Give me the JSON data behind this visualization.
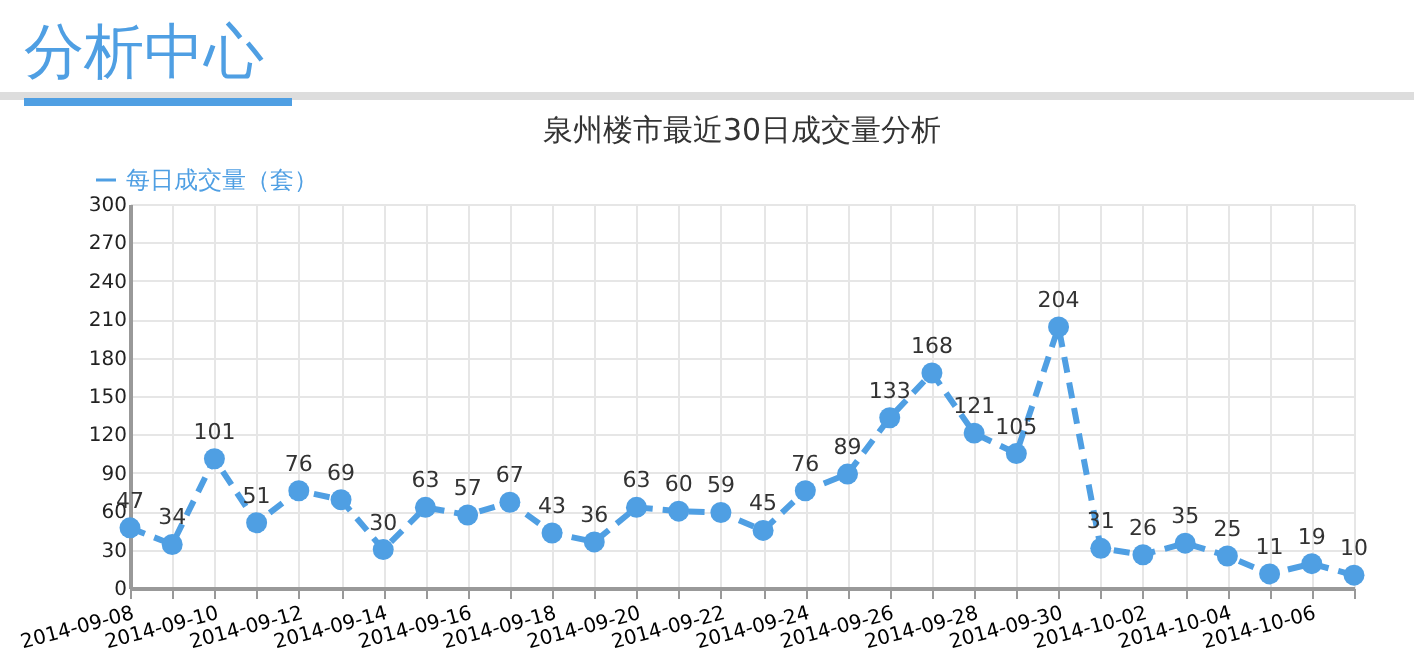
{
  "chart_data": {
    "type": "line",
    "title": "泉州楼市最近30日成交量分析",
    "annotations": [
      "分析中心"
    ],
    "categories": [
      "2014-09-08",
      null,
      "2014-09-10",
      null,
      "2014-09-12",
      null,
      "2014-09-14",
      null,
      "2014-09-16",
      null,
      "2014-09-18",
      null,
      "2014-09-20",
      null,
      "2014-09-22",
      null,
      "2014-09-24",
      null,
      "2014-09-26",
      null,
      "2014-09-28",
      null,
      "2014-09-30",
      null,
      "2014-10-02",
      null,
      "2014-10-04",
      null,
      "2014-10-06",
      null
    ],
    "series": [
      {
        "name": "每日成交量（套）",
        "color": "#4f9fe3",
        "values": [
          47,
          34,
          101,
          51,
          76,
          69,
          30,
          63,
          57,
          67,
          43,
          36,
          63,
          60,
          59,
          45,
          76,
          89,
          133,
          168,
          121,
          105,
          204,
          31,
          26,
          35,
          25,
          11,
          19,
          10
        ]
      }
    ],
    "ylim": [
      0,
      300
    ],
    "yticks": [
      0,
      30,
      60,
      90,
      120,
      150,
      180,
      210,
      240,
      270,
      300
    ],
    "grid": true,
    "legend": "top left",
    "marker": "circle",
    "line_style": "dashed",
    "data_labels": true
  }
}
